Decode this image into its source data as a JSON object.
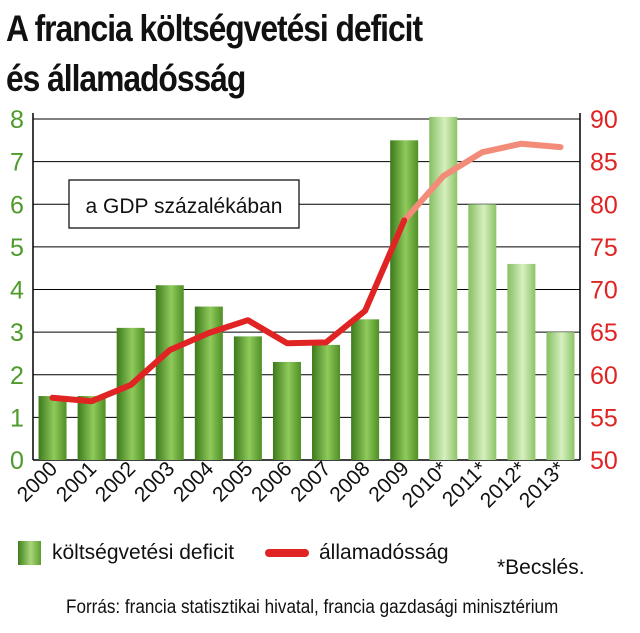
{
  "title": {
    "line1": "A francia költségvetési deficit",
    "line2": "és államadósság"
  },
  "note": "*Becslés.",
  "source": "Forrás: francia statisztikai hivatal, francia gazdasági minisztérium",
  "colors": {
    "bar_actual": "#5a9a2e",
    "bar_estimate": "#9ccf78",
    "line_actual": "#e02424",
    "line_estimate": "#f28c78",
    "left_axis_text": "#4e9a2a",
    "right_axis_text": "#e02424",
    "grid": "#000000"
  },
  "chart_data": {
    "type": "bar",
    "annotation": "a GDP százalékában",
    "categories": [
      "2000",
      "2001",
      "2002",
      "2003",
      "2004",
      "2005",
      "2006",
      "2007",
      "2008",
      "2009",
      "2010*",
      "2011*",
      "2012*",
      "2013*"
    ],
    "estimated_from_index": 10,
    "series": [
      {
        "name": "költségvetési deficit",
        "type": "bar",
        "axis": "left",
        "values": [
          1.5,
          1.5,
          3.1,
          4.1,
          3.6,
          2.9,
          2.3,
          2.7,
          3.3,
          7.5,
          8.05,
          6.0,
          4.6,
          3.0
        ]
      },
      {
        "name": "államadósság",
        "type": "line",
        "axis": "right",
        "values": [
          57.3,
          56.9,
          58.8,
          62.9,
          64.9,
          66.4,
          63.7,
          63.8,
          67.5,
          78.1,
          83.3,
          86.1,
          87.1,
          86.7
        ]
      }
    ],
    "y_left": {
      "min": 0,
      "max": 8,
      "ticks": [
        0,
        1,
        2,
        3,
        4,
        5,
        6,
        7,
        8
      ]
    },
    "y_right": {
      "min": 50,
      "max": 90,
      "ticks": [
        50,
        55,
        60,
        65,
        70,
        75,
        80,
        85,
        90
      ]
    },
    "grid": true,
    "legend_position": "bottom"
  }
}
